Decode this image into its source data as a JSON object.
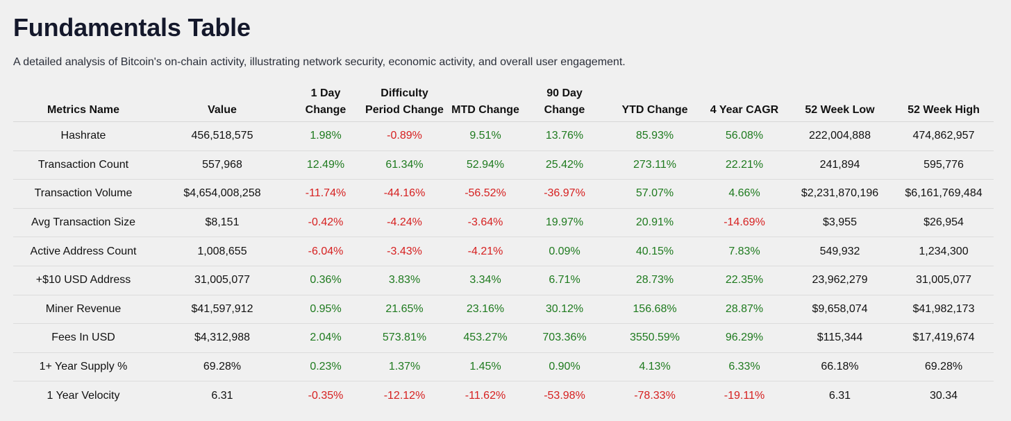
{
  "title": "Fundamentals Table",
  "subtitle": "A detailed analysis of Bitcoin's on-chain activity, illustrating network security, economic activity, and overall user engagement.",
  "colors": {
    "positive": "#1e7a1e",
    "negative": "#d62020"
  },
  "columns": [
    [
      "Metrics Name"
    ],
    [
      "Value"
    ],
    [
      "1 Day",
      "Change"
    ],
    [
      "Difficulty",
      "Period Change"
    ],
    [
      "MTD Change"
    ],
    [
      "90 Day",
      "Change"
    ],
    [
      "YTD Change"
    ],
    [
      "4 Year CAGR"
    ],
    [
      "52 Week Low"
    ],
    [
      "52 Week High"
    ]
  ],
  "rows": [
    [
      "Hashrate",
      "456,518,575",
      "1.98%",
      "-0.89%",
      "9.51%",
      "13.76%",
      "85.93%",
      "56.08%",
      "222,004,888",
      "474,862,957"
    ],
    [
      "Transaction Count",
      "557,968",
      "12.49%",
      "61.34%",
      "52.94%",
      "25.42%",
      "273.11%",
      "22.21%",
      "241,894",
      "595,776"
    ],
    [
      "Transaction Volume",
      "$4,654,008,258",
      "-11.74%",
      "-44.16%",
      "-56.52%",
      "-36.97%",
      "57.07%",
      "4.66%",
      "$2,231,870,196",
      "$6,161,769,484"
    ],
    [
      "Avg Transaction Size",
      "$8,151",
      "-0.42%",
      "-4.24%",
      "-3.64%",
      "19.97%",
      "20.91%",
      "-14.69%",
      "$3,955",
      "$26,954"
    ],
    [
      "Active Address Count",
      "1,008,655",
      "-6.04%",
      "-3.43%",
      "-4.21%",
      "0.09%",
      "40.15%",
      "7.83%",
      "549,932",
      "1,234,300"
    ],
    [
      "+$10 USD Address",
      "31,005,077",
      "0.36%",
      "3.83%",
      "3.34%",
      "6.71%",
      "28.73%",
      "22.35%",
      "23,962,279",
      "31,005,077"
    ],
    [
      "Miner Revenue",
      "$41,597,912",
      "0.95%",
      "21.65%",
      "23.16%",
      "30.12%",
      "156.68%",
      "28.87%",
      "$9,658,074",
      "$41,982,173"
    ],
    [
      "Fees In USD",
      "$4,312,988",
      "2.04%",
      "573.81%",
      "453.27%",
      "703.36%",
      "3550.59%",
      "96.29%",
      "$115,344",
      "$17,419,674"
    ],
    [
      "1+ Year Supply %",
      "69.28%",
      "0.23%",
      "1.37%",
      "1.45%",
      "0.90%",
      "4.13%",
      "6.33%",
      "66.18%",
      "69.28%"
    ],
    [
      "1 Year Velocity",
      "6.31",
      "-0.35%",
      "-12.12%",
      "-11.62%",
      "-53.98%",
      "-78.33%",
      "-19.11%",
      "6.31",
      "30.34"
    ]
  ]
}
